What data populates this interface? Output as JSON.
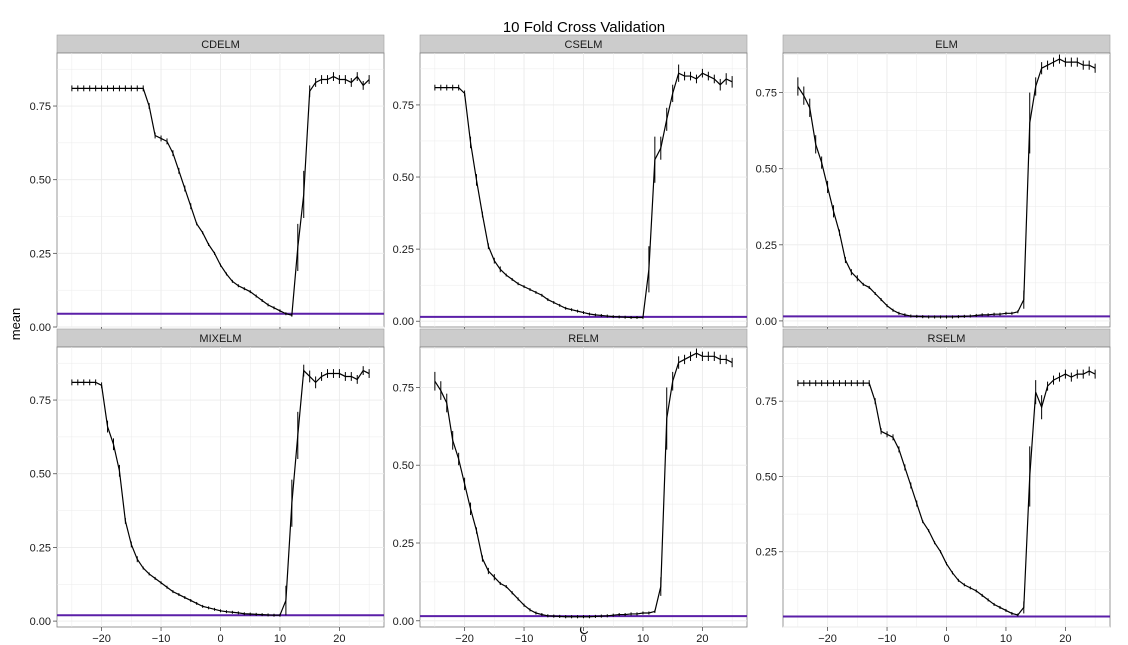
{
  "chart_data": {
    "type": "line",
    "title": "10 Fold Cross Validation",
    "xlabel": "C",
    "ylabel": "mean",
    "xlim": [
      -27.5,
      27.5
    ],
    "x_ticks": [
      -20,
      -10,
      0,
      10,
      20
    ],
    "colors": {
      "line": "#000000",
      "reference": "#5b1fa8",
      "strip": "#cccccc",
      "panel": "#ffffff",
      "grid": "#ebebeb"
    },
    "panels": [
      {
        "name": "CDELM",
        "ylim": [
          0,
          0.93
        ],
        "y_ticks": [
          0.0,
          0.25,
          0.5,
          0.75
        ],
        "y_tick_labels": [
          "0.00",
          "0.25",
          "0.50",
          "0.75"
        ],
        "reference": 0.045,
        "x": [
          -25,
          -24,
          -23,
          -22,
          -21,
          -20,
          -19,
          -18,
          -17,
          -16,
          -15,
          -14,
          -13,
          -12,
          -11,
          -10,
          -9,
          -8,
          -7,
          -6,
          -5,
          -4,
          -3,
          -2,
          -1,
          0,
          1,
          2,
          3,
          4,
          5,
          6,
          7,
          8,
          9,
          10,
          11,
          12,
          13,
          14,
          15,
          16,
          17,
          18,
          19,
          20,
          21,
          22,
          23,
          24,
          25
        ],
        "y": [
          0.81,
          0.81,
          0.81,
          0.81,
          0.81,
          0.81,
          0.81,
          0.81,
          0.81,
          0.81,
          0.81,
          0.81,
          0.81,
          0.75,
          0.65,
          0.64,
          0.63,
          0.59,
          0.53,
          0.47,
          0.41,
          0.35,
          0.32,
          0.28,
          0.25,
          0.21,
          0.18,
          0.155,
          0.14,
          0.13,
          0.12,
          0.105,
          0.09,
          0.075,
          0.065,
          0.055,
          0.045,
          0.04,
          0.27,
          0.45,
          0.8,
          0.83,
          0.84,
          0.84,
          0.85,
          0.84,
          0.84,
          0.83,
          0.85,
          0.82,
          0.84
        ],
        "err": [
          0.01,
          0.01,
          0.01,
          0.01,
          0.01,
          0.01,
          0.01,
          0.01,
          0.01,
          0.01,
          0.01,
          0.01,
          0.01,
          0.01,
          0.01,
          0.01,
          0.01,
          0.01,
          0.01,
          0.01,
          0.01,
          0.005,
          0.005,
          0.005,
          0.005,
          0.005,
          0.005,
          0.005,
          0.005,
          0.005,
          0.005,
          0.005,
          0.005,
          0.005,
          0.005,
          0.005,
          0.005,
          0.005,
          0.08,
          0.08,
          0.02,
          0.015,
          0.015,
          0.015,
          0.015,
          0.015,
          0.015,
          0.015,
          0.015,
          0.015,
          0.015
        ]
      },
      {
        "name": "CSELM",
        "ylim": [
          -0.02,
          0.93
        ],
        "y_ticks": [
          0.0,
          0.25,
          0.5,
          0.75
        ],
        "y_tick_labels": [
          "0.00",
          "0.25",
          "0.50",
          "0.75"
        ],
        "reference": 0.015,
        "x": [
          -25,
          -24,
          -23,
          -22,
          -21,
          -20,
          -19,
          -18,
          -17,
          -16,
          -15,
          -14,
          -13,
          -12,
          -11,
          -10,
          -9,
          -8,
          -7,
          -6,
          -5,
          -4,
          -3,
          -2,
          -1,
          0,
          1,
          2,
          3,
          4,
          5,
          6,
          7,
          8,
          9,
          10,
          11,
          12,
          13,
          14,
          15,
          16,
          17,
          18,
          19,
          20,
          21,
          22,
          23,
          24,
          25
        ],
        "y": [
          0.81,
          0.81,
          0.81,
          0.81,
          0.81,
          0.79,
          0.62,
          0.49,
          0.37,
          0.26,
          0.21,
          0.18,
          0.16,
          0.145,
          0.13,
          0.12,
          0.11,
          0.1,
          0.09,
          0.075,
          0.065,
          0.055,
          0.045,
          0.04,
          0.035,
          0.03,
          0.025,
          0.022,
          0.02,
          0.018,
          0.016,
          0.015,
          0.014,
          0.013,
          0.013,
          0.013,
          0.18,
          0.56,
          0.6,
          0.7,
          0.79,
          0.86,
          0.85,
          0.85,
          0.84,
          0.86,
          0.85,
          0.84,
          0.82,
          0.84,
          0.83
        ],
        "err": [
          0.01,
          0.01,
          0.01,
          0.01,
          0.01,
          0.01,
          0.02,
          0.02,
          0.01,
          0.01,
          0.01,
          0.01,
          0.005,
          0.005,
          0.005,
          0.005,
          0.005,
          0.005,
          0.005,
          0.005,
          0.005,
          0.005,
          0.005,
          0.005,
          0.005,
          0.005,
          0.005,
          0.005,
          0.005,
          0.005,
          0.005,
          0.005,
          0.005,
          0.005,
          0.005,
          0.005,
          0.08,
          0.08,
          0.04,
          0.04,
          0.03,
          0.03,
          0.015,
          0.015,
          0.015,
          0.015,
          0.015,
          0.015,
          0.02,
          0.02,
          0.02
        ]
      },
      {
        "name": "ELM",
        "ylim": [
          -0.02,
          0.88
        ],
        "y_ticks": [
          0.0,
          0.25,
          0.5,
          0.75
        ],
        "y_tick_labels": [
          "0.00",
          "0.25",
          "0.50",
          "0.75"
        ],
        "reference": 0.015,
        "x": [
          -25,
          -24,
          -23,
          -22,
          -21,
          -20,
          -19,
          -18,
          -17,
          -16,
          -15,
          -14,
          -13,
          -12,
          -11,
          -10,
          -9,
          -8,
          -7,
          -6,
          -5,
          -4,
          -3,
          -2,
          -1,
          0,
          1,
          2,
          3,
          4,
          5,
          6,
          7,
          8,
          9,
          10,
          11,
          12,
          13,
          14,
          15,
          16,
          17,
          18,
          19,
          20,
          21,
          22,
          23,
          24,
          25
        ],
        "y": [
          0.77,
          0.74,
          0.7,
          0.58,
          0.52,
          0.44,
          0.36,
          0.29,
          0.2,
          0.16,
          0.14,
          0.12,
          0.11,
          0.09,
          0.07,
          0.05,
          0.035,
          0.025,
          0.02,
          0.016,
          0.015,
          0.014,
          0.013,
          0.013,
          0.013,
          0.013,
          0.013,
          0.014,
          0.015,
          0.016,
          0.018,
          0.02,
          0.02,
          0.022,
          0.022,
          0.025,
          0.025,
          0.03,
          0.07,
          0.65,
          0.77,
          0.83,
          0.84,
          0.85,
          0.86,
          0.85,
          0.85,
          0.85,
          0.84,
          0.84,
          0.83
        ],
        "err": [
          0.03,
          0.03,
          0.03,
          0.03,
          0.02,
          0.02,
          0.02,
          0.01,
          0.01,
          0.01,
          0.01,
          0.005,
          0.005,
          0.005,
          0.005,
          0.005,
          0.005,
          0.005,
          0.005,
          0.005,
          0.005,
          0.005,
          0.005,
          0.005,
          0.005,
          0.005,
          0.005,
          0.005,
          0.005,
          0.005,
          0.005,
          0.005,
          0.005,
          0.005,
          0.005,
          0.005,
          0.005,
          0.005,
          0.03,
          0.1,
          0.03,
          0.02,
          0.015,
          0.015,
          0.015,
          0.015,
          0.015,
          0.015,
          0.015,
          0.015,
          0.015
        ]
      },
      {
        "name": "MIXELM",
        "ylim": [
          -0.02,
          0.93
        ],
        "y_ticks": [
          0.0,
          0.25,
          0.5,
          0.75
        ],
        "y_tick_labels": [
          "0.00",
          "0.25",
          "0.50",
          "0.75"
        ],
        "reference": 0.02,
        "x": [
          -25,
          -24,
          -23,
          -22,
          -21,
          -20,
          -19,
          -18,
          -17,
          -16,
          -15,
          -14,
          -13,
          -12,
          -11,
          -10,
          -9,
          -8,
          -7,
          -6,
          -5,
          -4,
          -3,
          -2,
          -1,
          0,
          1,
          2,
          3,
          4,
          5,
          6,
          7,
          8,
          9,
          10,
          11,
          12,
          13,
          14,
          15,
          16,
          17,
          18,
          19,
          20,
          21,
          22,
          23,
          24,
          25
        ],
        "y": [
          0.81,
          0.81,
          0.81,
          0.81,
          0.81,
          0.8,
          0.66,
          0.6,
          0.51,
          0.34,
          0.26,
          0.21,
          0.18,
          0.16,
          0.145,
          0.13,
          0.115,
          0.1,
          0.09,
          0.08,
          0.07,
          0.06,
          0.05,
          0.045,
          0.04,
          0.035,
          0.032,
          0.03,
          0.028,
          0.025,
          0.024,
          0.023,
          0.022,
          0.021,
          0.02,
          0.02,
          0.07,
          0.4,
          0.63,
          0.85,
          0.83,
          0.81,
          0.83,
          0.84,
          0.84,
          0.84,
          0.83,
          0.83,
          0.82,
          0.85,
          0.84
        ],
        "err": [
          0.01,
          0.01,
          0.01,
          0.01,
          0.01,
          0.01,
          0.02,
          0.02,
          0.02,
          0.01,
          0.01,
          0.01,
          0.005,
          0.005,
          0.005,
          0.005,
          0.005,
          0.005,
          0.005,
          0.005,
          0.005,
          0.005,
          0.005,
          0.005,
          0.005,
          0.005,
          0.005,
          0.005,
          0.005,
          0.005,
          0.005,
          0.005,
          0.005,
          0.005,
          0.005,
          0.005,
          0.05,
          0.08,
          0.08,
          0.02,
          0.02,
          0.02,
          0.015,
          0.015,
          0.015,
          0.015,
          0.015,
          0.015,
          0.015,
          0.015,
          0.015
        ]
      },
      {
        "name": "RELM",
        "ylim": [
          -0.02,
          0.88
        ],
        "y_ticks": [
          0.0,
          0.25,
          0.5,
          0.75
        ],
        "y_tick_labels": [
          "0.00",
          "0.25",
          "0.50",
          "0.75"
        ],
        "reference": 0.015,
        "x": [
          -25,
          -24,
          -23,
          -22,
          -21,
          -20,
          -19,
          -18,
          -17,
          -16,
          -15,
          -14,
          -13,
          -12,
          -11,
          -10,
          -9,
          -8,
          -7,
          -6,
          -5,
          -4,
          -3,
          -2,
          -1,
          0,
          1,
          2,
          3,
          4,
          5,
          6,
          7,
          8,
          9,
          10,
          11,
          12,
          13,
          14,
          15,
          16,
          17,
          18,
          19,
          20,
          21,
          22,
          23,
          24,
          25
        ],
        "y": [
          0.77,
          0.74,
          0.7,
          0.58,
          0.52,
          0.44,
          0.36,
          0.29,
          0.2,
          0.16,
          0.14,
          0.12,
          0.11,
          0.09,
          0.07,
          0.05,
          0.035,
          0.025,
          0.02,
          0.016,
          0.015,
          0.014,
          0.013,
          0.013,
          0.013,
          0.013,
          0.013,
          0.014,
          0.015,
          0.016,
          0.018,
          0.02,
          0.02,
          0.022,
          0.022,
          0.025,
          0.025,
          0.03,
          0.11,
          0.65,
          0.77,
          0.83,
          0.84,
          0.85,
          0.86,
          0.85,
          0.85,
          0.85,
          0.84,
          0.84,
          0.83
        ],
        "err": [
          0.03,
          0.03,
          0.03,
          0.03,
          0.02,
          0.02,
          0.02,
          0.01,
          0.01,
          0.01,
          0.01,
          0.005,
          0.005,
          0.005,
          0.005,
          0.005,
          0.005,
          0.005,
          0.005,
          0.005,
          0.005,
          0.005,
          0.005,
          0.005,
          0.005,
          0.005,
          0.005,
          0.005,
          0.005,
          0.005,
          0.005,
          0.005,
          0.005,
          0.005,
          0.005,
          0.005,
          0.005,
          0.005,
          0.03,
          0.1,
          0.03,
          0.02,
          0.015,
          0.015,
          0.015,
          0.015,
          0.015,
          0.015,
          0.015,
          0.015,
          0.015
        ]
      },
      {
        "name": "RSELM",
        "ylim": [
          0,
          0.93
        ],
        "y_ticks": [
          0.25,
          0.5,
          0.75
        ],
        "y_tick_labels": [
          "0.25",
          "0.50",
          "0.75"
        ],
        "reference": 0.035,
        "x": [
          -25,
          -24,
          -23,
          -22,
          -21,
          -20,
          -19,
          -18,
          -17,
          -16,
          -15,
          -14,
          -13,
          -12,
          -11,
          -10,
          -9,
          -8,
          -7,
          -6,
          -5,
          -4,
          -3,
          -2,
          -1,
          0,
          1,
          2,
          3,
          4,
          5,
          6,
          7,
          8,
          9,
          10,
          11,
          12,
          13,
          14,
          15,
          16,
          17,
          18,
          19,
          20,
          21,
          22,
          23,
          24,
          25
        ],
        "y": [
          0.81,
          0.81,
          0.81,
          0.81,
          0.81,
          0.81,
          0.81,
          0.81,
          0.81,
          0.81,
          0.81,
          0.81,
          0.81,
          0.75,
          0.65,
          0.64,
          0.63,
          0.59,
          0.53,
          0.47,
          0.41,
          0.35,
          0.32,
          0.28,
          0.25,
          0.21,
          0.18,
          0.155,
          0.14,
          0.13,
          0.12,
          0.105,
          0.09,
          0.075,
          0.065,
          0.055,
          0.045,
          0.04,
          0.065,
          0.5,
          0.78,
          0.73,
          0.8,
          0.82,
          0.83,
          0.84,
          0.83,
          0.84,
          0.84,
          0.85,
          0.84
        ],
        "err": [
          0.01,
          0.01,
          0.01,
          0.01,
          0.01,
          0.01,
          0.01,
          0.01,
          0.01,
          0.01,
          0.01,
          0.01,
          0.01,
          0.01,
          0.01,
          0.01,
          0.01,
          0.01,
          0.01,
          0.01,
          0.01,
          0.005,
          0.005,
          0.005,
          0.005,
          0.005,
          0.005,
          0.005,
          0.005,
          0.005,
          0.005,
          0.005,
          0.005,
          0.005,
          0.005,
          0.005,
          0.005,
          0.005,
          0.02,
          0.1,
          0.04,
          0.04,
          0.015,
          0.015,
          0.015,
          0.015,
          0.015,
          0.015,
          0.015,
          0.015,
          0.015
        ]
      }
    ]
  }
}
